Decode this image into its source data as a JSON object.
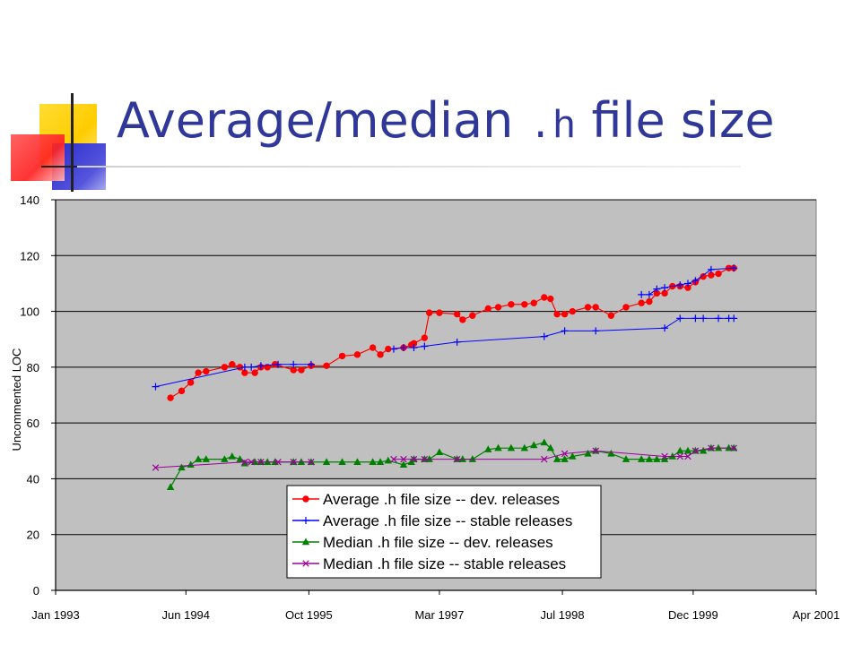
{
  "slide": {
    "title_part1": "Average/median ",
    "title_code": ".h",
    "title_part2": " file size",
    "accent_colors": {
      "yellow": "#ffcc00",
      "blue": "#3333cc",
      "red": "#ff3333",
      "title": "#2f3799"
    }
  },
  "chart_data": {
    "type": "line",
    "ylabel": "Uncommented LOC",
    "xlabel": "",
    "ylim": [
      0,
      140
    ],
    "yticks": [
      0,
      20,
      40,
      60,
      80,
      100,
      120,
      140
    ],
    "xtick_labels": [
      "Jan 1993",
      "Jun 1994",
      "Oct 1995",
      "Mar 1997",
      "Jul 1998",
      "Dec 1999",
      "Apr 2001"
    ],
    "xtick_dates": [
      "1993-01-01",
      "1994-06-01",
      "1995-10-01",
      "1997-03-01",
      "1998-07-01",
      "1999-12-01",
      "2001-04-01"
    ],
    "grid": "horizontal",
    "plot_background": "#c0c0c0",
    "legend_position": "bottom-center",
    "series": [
      {
        "name": "Average .h file size -- dev. releases",
        "color": "#ff0000",
        "marker": "circle",
        "x": [
          "1994-04-01",
          "1994-05-15",
          "1994-06-20",
          "1994-07-20",
          "1994-08-20",
          "1994-11-01",
          "1994-12-01",
          "1995-01-01",
          "1995-01-20",
          "1995-03-01",
          "1995-03-25",
          "1995-04-20",
          "1995-05-20",
          "1995-08-01",
          "1995-09-01",
          "1995-10-10",
          "1995-12-10",
          "1996-02-10",
          "1996-04-10",
          "1996-06-10",
          "1996-07-10",
          "1996-08-10",
          "1996-10-10",
          "1996-11-10",
          "1996-11-20",
          "1997-01-01",
          "1997-01-20",
          "1997-03-01",
          "1997-05-10",
          "1997-06-01",
          "1997-07-10",
          "1997-09-10",
          "1997-10-20",
          "1997-12-10",
          "1998-02-01",
          "1998-03-10",
          "1998-04-20",
          "1998-05-15",
          "1998-06-10",
          "1998-07-10",
          "1998-08-10",
          "1998-10-10",
          "1998-11-10",
          "1999-01-10",
          "1999-03-10",
          "1999-05-10",
          "1999-06-10",
          "1999-07-10",
          "1999-08-10",
          "1999-09-10",
          "1999-10-10",
          "1999-11-10",
          "1999-12-10",
          "2000-01-10",
          "2000-02-10",
          "2000-03-10",
          "2000-04-20",
          "2000-05-10"
        ],
        "values": [
          69,
          71.5,
          74.5,
          78,
          78.5,
          80,
          81,
          80,
          78,
          78,
          80,
          80,
          81,
          79,
          79,
          80.5,
          80.5,
          84,
          84.5,
          87,
          84.5,
          86.5,
          87,
          88,
          88.5,
          90.5,
          99.5,
          99.5,
          99,
          97,
          98.5,
          101,
          101.5,
          102.5,
          102.5,
          103,
          105,
          104.5,
          99,
          99,
          100,
          101.5,
          101.5,
          98.5,
          101.5,
          103,
          103.5,
          106.5,
          106.5,
          109,
          109,
          108.5,
          110.5,
          112.5,
          113,
          113.5,
          115.5,
          115.5
        ]
      },
      {
        "name": "Average .h file size -- stable releases",
        "color": "#0000ff",
        "marker": "plus",
        "x": [
          "1994-02-01",
          "1995-01-20",
          "1995-02-15",
          "1995-03-25",
          "1995-06-01",
          "1995-08-01",
          "1995-10-10",
          "1996-09-01",
          "1996-10-10",
          "1996-11-20",
          "1997-01-01",
          "1997-05-10",
          "1998-04-20",
          "1998-07-10",
          "1998-11-10",
          "1999-08-10",
          "1999-10-10",
          "1999-12-10",
          "2000-01-10",
          "2000-03-10",
          "2000-04-20",
          "2000-05-10",
          "1999-05-10",
          "1999-06-10",
          "1999-07-10",
          "1999-08-10",
          "1999-10-10",
          "1999-11-10",
          "1999-12-10",
          "2000-02-10",
          "2000-05-10"
        ],
        "values": [
          73,
          80,
          80,
          80.5,
          81,
          81,
          81,
          86.5,
          87,
          87,
          87.5,
          89,
          91,
          93,
          93,
          94,
          97.5,
          97.5,
          97.5,
          97.5,
          97.5,
          97.5,
          106,
          106,
          108,
          108.5,
          109.5,
          110,
          111,
          115,
          115.5
        ]
      },
      {
        "name": "Median .h file size -- dev. releases",
        "color": "#008000",
        "marker": "triangle",
        "x": [
          "1994-04-01",
          "1994-05-15",
          "1994-06-20",
          "1994-07-20",
          "1994-08-20",
          "1994-11-01",
          "1994-12-01",
          "1995-01-01",
          "1995-01-20",
          "1995-03-01",
          "1995-03-25",
          "1995-04-20",
          "1995-05-20",
          "1995-08-01",
          "1995-09-01",
          "1995-10-10",
          "1995-12-10",
          "1996-02-10",
          "1996-04-10",
          "1996-06-10",
          "1996-07-10",
          "1996-08-10",
          "1996-10-10",
          "1996-11-10",
          "1996-11-20",
          "1997-01-01",
          "1997-01-20",
          "1997-03-01",
          "1997-05-10",
          "1997-06-01",
          "1997-07-10",
          "1997-09-10",
          "1997-10-20",
          "1997-12-10",
          "1998-02-01",
          "1998-03-10",
          "1998-04-20",
          "1998-05-15",
          "1998-06-10",
          "1998-07-10",
          "1998-08-10",
          "1998-10-10",
          "1998-11-10",
          "1999-01-10",
          "1999-03-10",
          "1999-05-10",
          "1999-06-10",
          "1999-07-10",
          "1999-08-10",
          "1999-09-10",
          "1999-10-10",
          "1999-11-10",
          "1999-12-10",
          "2000-01-10",
          "2000-02-10",
          "2000-03-10",
          "2000-04-20",
          "2000-05-10"
        ],
        "values": [
          37,
          44,
          45,
          47,
          47,
          47,
          48,
          47,
          45.5,
          46,
          46,
          46,
          46,
          46,
          46,
          46,
          46,
          46,
          46,
          46,
          46,
          46.5,
          45,
          46,
          47,
          47,
          47,
          49.5,
          47,
          47,
          47,
          50.5,
          51,
          51,
          51,
          52,
          53,
          51,
          47,
          47,
          48,
          49,
          50,
          49,
          47,
          47,
          47,
          47,
          47,
          48,
          50,
          50,
          50,
          50,
          51,
          51,
          51,
          51
        ]
      },
      {
        "name": "Median .h file size -- stable releases",
        "color": "#990099",
        "marker": "x",
        "x": [
          "1994-02-01",
          "1995-01-20",
          "1995-02-15",
          "1995-03-25",
          "1995-06-01",
          "1995-08-01",
          "1995-10-10",
          "1996-09-01",
          "1996-10-10",
          "1996-11-20",
          "1997-01-01",
          "1997-05-10",
          "1998-04-20",
          "1998-07-10",
          "1998-11-10",
          "1999-08-10",
          "1999-10-10",
          "1999-11-10",
          "1999-12-10",
          "2000-02-10",
          "2000-05-10"
        ],
        "values": [
          44,
          46,
          46,
          46,
          46,
          46,
          46,
          47,
          47,
          47,
          47,
          47,
          47,
          49,
          50,
          48,
          48,
          48,
          50,
          51,
          51
        ]
      }
    ]
  }
}
